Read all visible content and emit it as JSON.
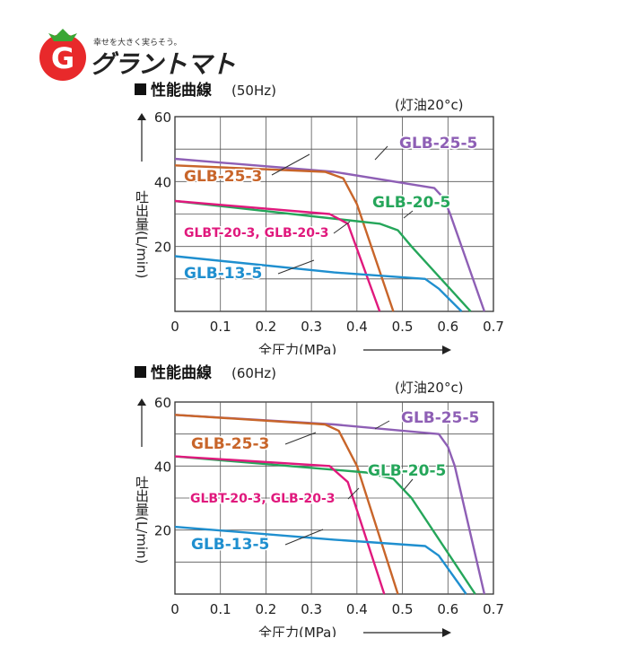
{
  "logo": {
    "tagline": "幸せを大きく実らそう。",
    "name": "グラントマト"
  },
  "chart_data": [
    {
      "type": "line",
      "title": "性能曲線",
      "subtitle": "(50Hz)",
      "note": "(灯油20°c)",
      "xlabel": "全圧力(MPa)",
      "ylabel": "吐出量(L/min)",
      "xlim": [
        0,
        0.7
      ],
      "ylim": [
        0,
        60
      ],
      "xticks": [
        "0",
        "0.1",
        "0.2",
        "0.3",
        "0.4",
        "0.5",
        "0.6",
        "0.7"
      ],
      "yticks": [
        "20",
        "40",
        "60"
      ],
      "grid": true,
      "series": [
        {
          "name": "GLB-25-5",
          "color": "#8e5fb5",
          "x": [
            0,
            0.35,
            0.57,
            0.59,
            0.605,
            0.68
          ],
          "y": [
            47,
            43,
            38,
            35,
            30,
            0
          ]
        },
        {
          "name": "GLB-25-3",
          "color": "#c8652a",
          "x": [
            0,
            0.33,
            0.37,
            0.4,
            0.48
          ],
          "y": [
            45,
            43,
            41,
            33,
            0
          ]
        },
        {
          "name": "GLB-20-5",
          "color": "#25a65a",
          "x": [
            0,
            0.45,
            0.49,
            0.52,
            0.65
          ],
          "y": [
            34,
            27,
            25,
            20,
            0
          ]
        },
        {
          "name": "GLBT-20-3, GLB-20-3",
          "color": "#e0197d",
          "x": [
            0,
            0.34,
            0.38,
            0.45
          ],
          "y": [
            34,
            30,
            27,
            0
          ]
        },
        {
          "name": "GLB-13-5",
          "color": "#1f8fcf",
          "x": [
            0,
            0.35,
            0.55,
            0.58,
            0.63
          ],
          "y": [
            17,
            12,
            10,
            7,
            0
          ]
        }
      ]
    },
    {
      "type": "line",
      "title": "性能曲線",
      "subtitle": "(60Hz)",
      "note": "(灯油20°c)",
      "xlabel": "全圧力(MPa)",
      "ylabel": "吐出量(L/min)",
      "xlim": [
        0,
        0.7
      ],
      "ylim": [
        0,
        60
      ],
      "xticks": [
        "0",
        "0.1",
        "0.2",
        "0.3",
        "0.4",
        "0.5",
        "0.6",
        "0.7"
      ],
      "yticks": [
        "20",
        "40",
        "60"
      ],
      "grid": true,
      "series": [
        {
          "name": "GLB-25-5",
          "color": "#8e5fb5",
          "x": [
            0,
            0.35,
            0.58,
            0.6,
            0.615,
            0.68
          ],
          "y": [
            56,
            53,
            50,
            46,
            40,
            0
          ]
        },
        {
          "name": "GLB-25-3",
          "color": "#c8652a",
          "x": [
            0,
            0.33,
            0.36,
            0.4,
            0.49
          ],
          "y": [
            56,
            53,
            51,
            40,
            0
          ]
        },
        {
          "name": "GLB-20-5",
          "color": "#25a65a",
          "x": [
            0,
            0.42,
            0.48,
            0.52,
            0.66
          ],
          "y": [
            43,
            38,
            36,
            30,
            0
          ]
        },
        {
          "name": "GLBT-20-3, GLB-20-3",
          "color": "#e0197d",
          "x": [
            0,
            0.34,
            0.38,
            0.46
          ],
          "y": [
            43,
            40,
            35,
            0
          ]
        },
        {
          "name": "GLB-13-5",
          "color": "#1f8fcf",
          "x": [
            0,
            0.35,
            0.55,
            0.58,
            0.64
          ],
          "y": [
            21,
            17,
            15,
            12,
            0
          ]
        }
      ]
    }
  ]
}
